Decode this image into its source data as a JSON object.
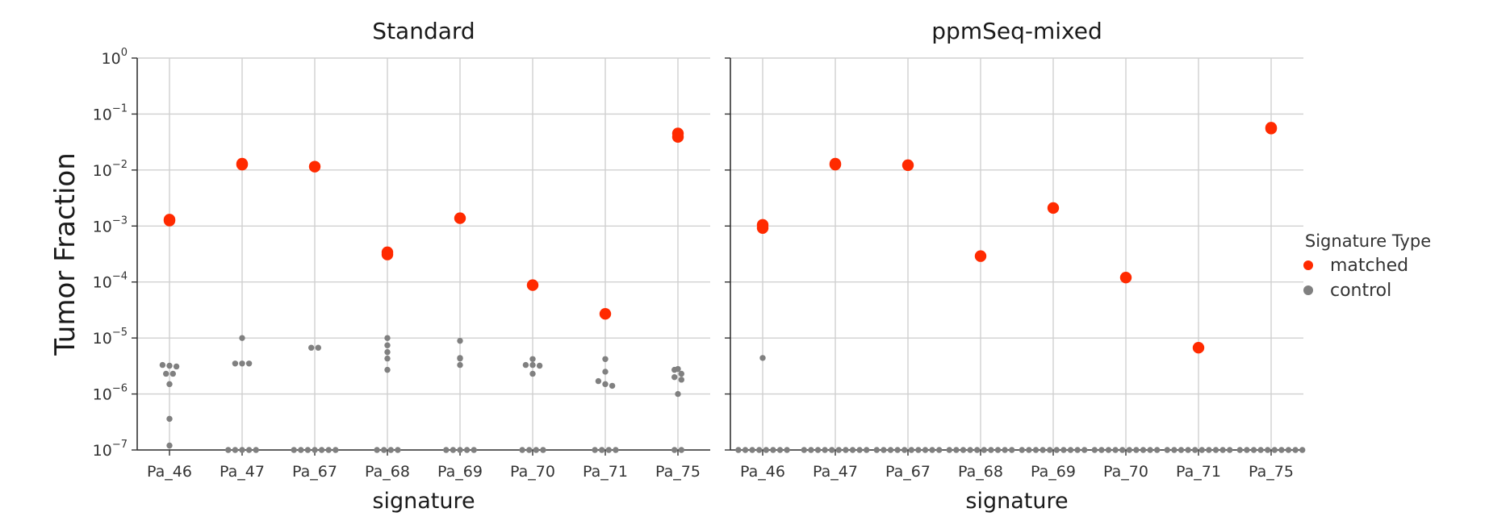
{
  "chart_data": {
    "type": "scatter",
    "ylabel": "Tumor Fraction",
    "yscale": "log",
    "ylim": [
      1e-07,
      1
    ],
    "grid": true,
    "yticks": [
      {
        "value": 1,
        "exp": "0"
      },
      {
        "value": 0.1,
        "exp": "−1"
      },
      {
        "value": 0.01,
        "exp": "−2"
      },
      {
        "value": 0.001,
        "exp": "−3"
      },
      {
        "value": 0.0001,
        "exp": "−4"
      },
      {
        "value": 1e-05,
        "exp": "−5"
      },
      {
        "value": 1e-06,
        "exp": "−6"
      },
      {
        "value": 1e-07,
        "exp": "−7"
      }
    ],
    "ytick_base": "10",
    "legend": {
      "title": "Signature Type",
      "placement": "right",
      "entries": [
        {
          "label": "matched",
          "color": "#ff2a00"
        },
        {
          "label": "control",
          "color": "#808080"
        }
      ]
    },
    "categories": [
      "Pa_46",
      "Pa_47",
      "Pa_67",
      "Pa_68",
      "Pa_69",
      "Pa_70",
      "Pa_71",
      "Pa_75"
    ],
    "panels": [
      {
        "title": "Standard",
        "xlabel": "signature",
        "matched": [
          [
            0.0013,
            0.00125
          ],
          [
            0.0125,
            0.013
          ],
          [
            0.0115
          ],
          [
            0.00034,
            0.00031
          ],
          [
            0.00138
          ],
          [
            8.8e-05
          ],
          [
            2.7e-05
          ],
          [
            0.045,
            0.039
          ]
        ],
        "control": [
          [
            3.3e-06,
            3.2e-06,
            3.1e-06,
            2.3e-06,
            2.3e-06,
            1.5e-06,
            3.6e-07,
            1.2e-07
          ],
          [
            1e-05,
            3.5e-06,
            3.5e-06,
            3.5e-06,
            1e-07,
            1e-07,
            1e-07,
            1e-07,
            1e-07
          ],
          [
            6.7e-06,
            6.7e-06,
            1e-07,
            1e-07,
            1e-07,
            1e-07,
            1e-07,
            1e-07,
            1e-07
          ],
          [
            1e-05,
            7.4e-06,
            5.6e-06,
            4.3e-06,
            2.7e-06,
            1e-07,
            1e-07,
            1e-07,
            1e-07
          ],
          [
            8.9e-06,
            4.4e-06,
            4.3e-06,
            3.3e-06,
            1e-07,
            1e-07,
            1e-07,
            1e-07,
            1e-07
          ],
          [
            4.2e-06,
            3.3e-06,
            3.3e-06,
            3.2e-06,
            2.3e-06,
            1e-07,
            1e-07,
            1e-07,
            1e-07
          ],
          [
            4.2e-06,
            2.5e-06,
            1.7e-06,
            1.5e-06,
            1.4e-06,
            1e-07,
            1e-07,
            1e-07,
            1e-07
          ],
          [
            2.8e-06,
            2.7e-06,
            2.3e-06,
            2e-06,
            1.8e-06,
            1e-06,
            1e-07,
            1e-07
          ]
        ]
      },
      {
        "title": "ppmSeq-mixed",
        "xlabel": "signature",
        "matched": [
          [
            0.00105,
            0.00092
          ],
          [
            0.0125,
            0.013
          ],
          [
            0.0122
          ],
          [
            0.00029
          ],
          [
            0.0021
          ],
          [
            0.00012
          ],
          [
            6.7e-06
          ],
          [
            0.057,
            0.055
          ]
        ],
        "control": [
          [
            4.4e-06,
            1e-07,
            1e-07,
            1e-07,
            1e-07,
            1e-07,
            1e-07,
            1e-07,
            1e-07
          ],
          [
            1e-07,
            1e-07,
            1e-07,
            1e-07,
            1e-07,
            1e-07,
            1e-07,
            1e-07,
            1e-07,
            1e-07
          ],
          [
            1e-07,
            1e-07,
            1e-07,
            1e-07,
            1e-07,
            1e-07,
            1e-07,
            1e-07,
            1e-07,
            1e-07
          ],
          [
            1e-07,
            1e-07,
            1e-07,
            1e-07,
            1e-07,
            1e-07,
            1e-07,
            1e-07,
            1e-07,
            1e-07
          ],
          [
            1e-07,
            1e-07,
            1e-07,
            1e-07,
            1e-07,
            1e-07,
            1e-07,
            1e-07,
            1e-07,
            1e-07
          ],
          [
            1e-07,
            1e-07,
            1e-07,
            1e-07,
            1e-07,
            1e-07,
            1e-07,
            1e-07,
            1e-07,
            1e-07
          ],
          [
            1e-07,
            1e-07,
            1e-07,
            1e-07,
            1e-07,
            1e-07,
            1e-07,
            1e-07,
            1e-07,
            1e-07
          ],
          [
            1e-07,
            1e-07,
            1e-07,
            1e-07,
            1e-07,
            1e-07,
            1e-07,
            1e-07,
            1e-07,
            1e-07
          ]
        ]
      }
    ]
  }
}
